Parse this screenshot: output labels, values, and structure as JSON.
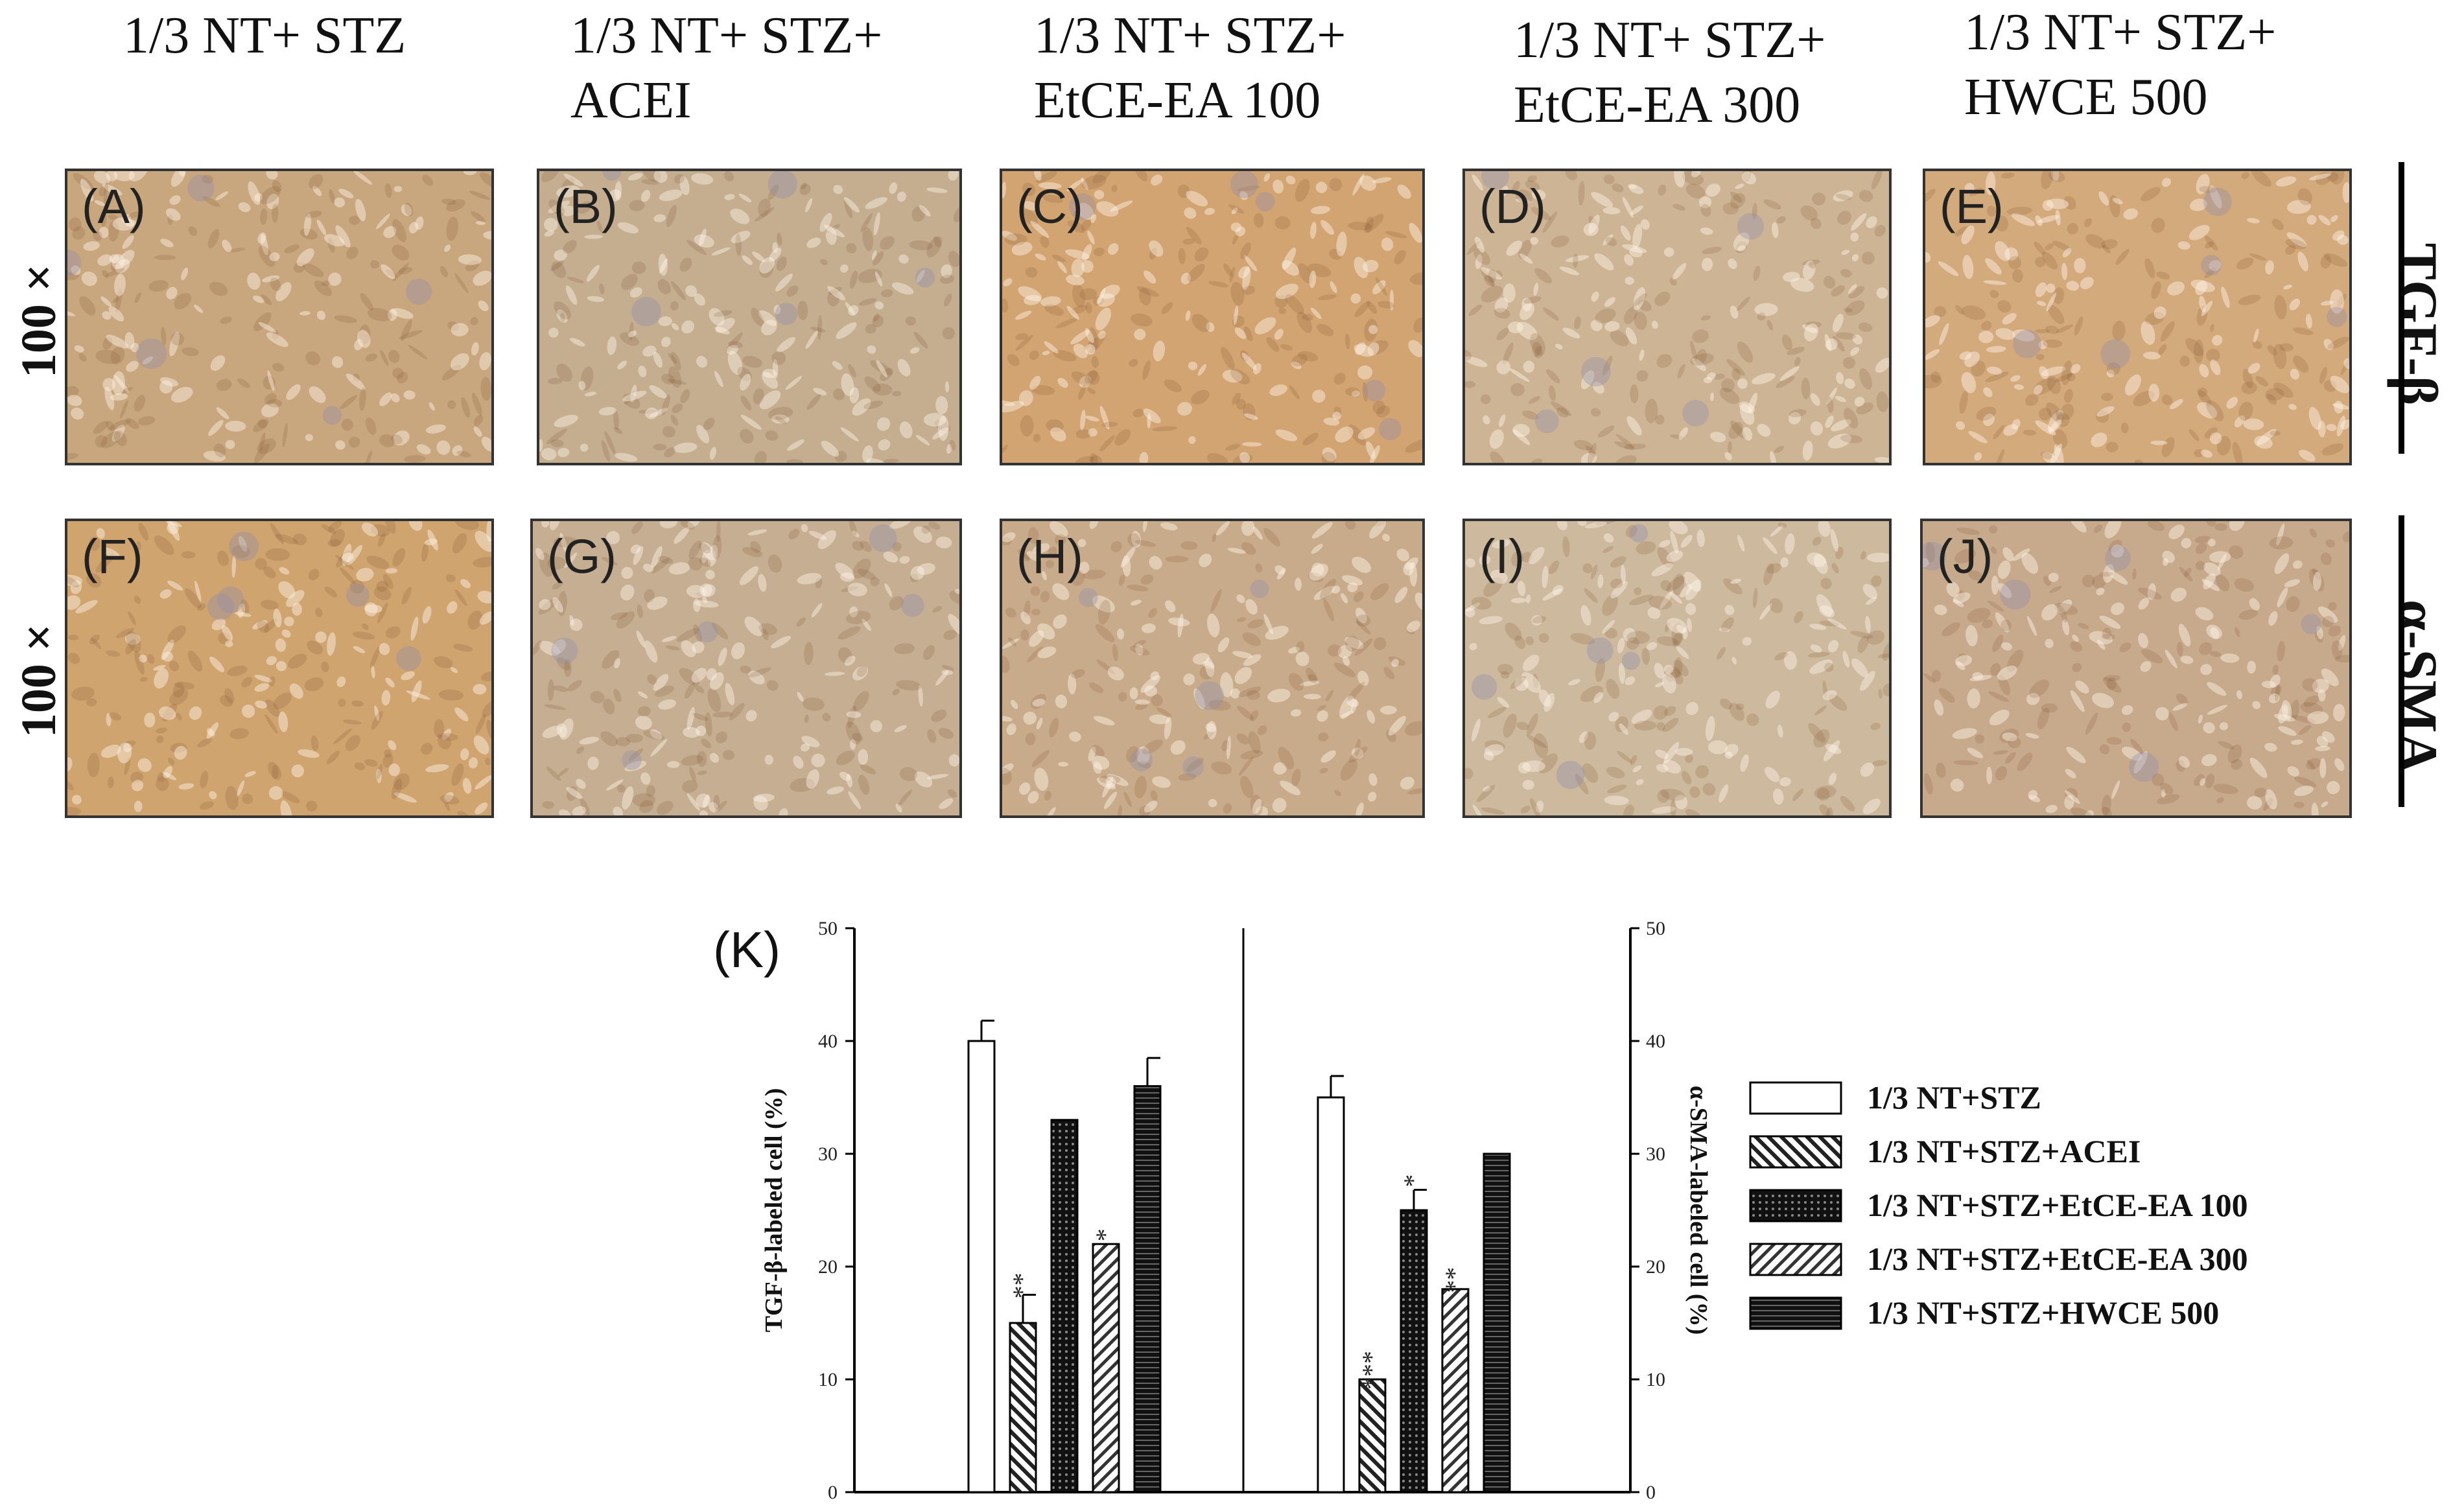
{
  "figure": {
    "columns": [
      {
        "line1": "1/3 NT+ STZ",
        "line2": ""
      },
      {
        "line1": "1/3 NT+ STZ+",
        "line2": "ACEI"
      },
      {
        "line1": "1/3 NT+ STZ+",
        "line2": "EtCE-EA 100"
      },
      {
        "line1": "1/3 NT+ STZ+",
        "line2": "EtCE-EA 300"
      },
      {
        "line1": "1/3 NT+ STZ+",
        "line2": "HWCE 500"
      }
    ],
    "rows": [
      {
        "magnification": "100 ×",
        "stain": "TGF-β",
        "panels": [
          "(A)",
          "(B)",
          "(C)",
          "(D)",
          "(E)"
        ]
      },
      {
        "magnification": "100 ×",
        "stain": "α-SMA",
        "panels": [
          "(F)",
          "(G)",
          "(H)",
          "(I)",
          "(J)"
        ]
      }
    ],
    "panel_tints": [
      [
        "#c9a77e",
        "#c4ae8f",
        "#d2a472",
        "#cdb494",
        "#d3aa7c"
      ],
      [
        "#d0a46f",
        "#c5ae92",
        "#c8ab8a",
        "#cdb99d",
        "#c7aa8c"
      ]
    ],
    "chart_letter": "(K)"
  },
  "chart_data": {
    "type": "bar",
    "groups": [
      {
        "ylabel": "TGF-β-labeled cell (%)",
        "ylim": [
          0,
          50
        ],
        "yticks": [
          0,
          10,
          20,
          30,
          40,
          50
        ],
        "values": [
          40,
          15,
          33,
          22,
          36
        ],
        "errors": [
          1.8,
          2.5,
          0,
          0,
          2.5
        ],
        "significance": [
          "",
          "**",
          "",
          "*",
          ""
        ]
      },
      {
        "ylabel": "α-SMA-labeled cell (%)",
        "ylim": [
          0,
          50
        ],
        "yticks": [
          0,
          10,
          20,
          30,
          40,
          50
        ],
        "values": [
          35,
          10,
          25,
          18,
          30
        ],
        "errors": [
          1.9,
          0,
          1.8,
          0,
          0
        ],
        "significance": [
          "",
          "***",
          "*",
          "**",
          ""
        ]
      }
    ],
    "series": [
      {
        "name": "1/3 NT+STZ",
        "pattern": "white"
      },
      {
        "name": "1/3 NT+STZ+ACEI",
        "pattern": "hatch-forward"
      },
      {
        "name": "1/3 NT+STZ+EtCE-EA 100",
        "pattern": "crosshatch-dark"
      },
      {
        "name": "1/3 NT+STZ+EtCE-EA 300",
        "pattern": "hatch-back"
      },
      {
        "name": "1/3 NT+STZ+HWCE 500",
        "pattern": "horizontal-dark"
      }
    ]
  }
}
